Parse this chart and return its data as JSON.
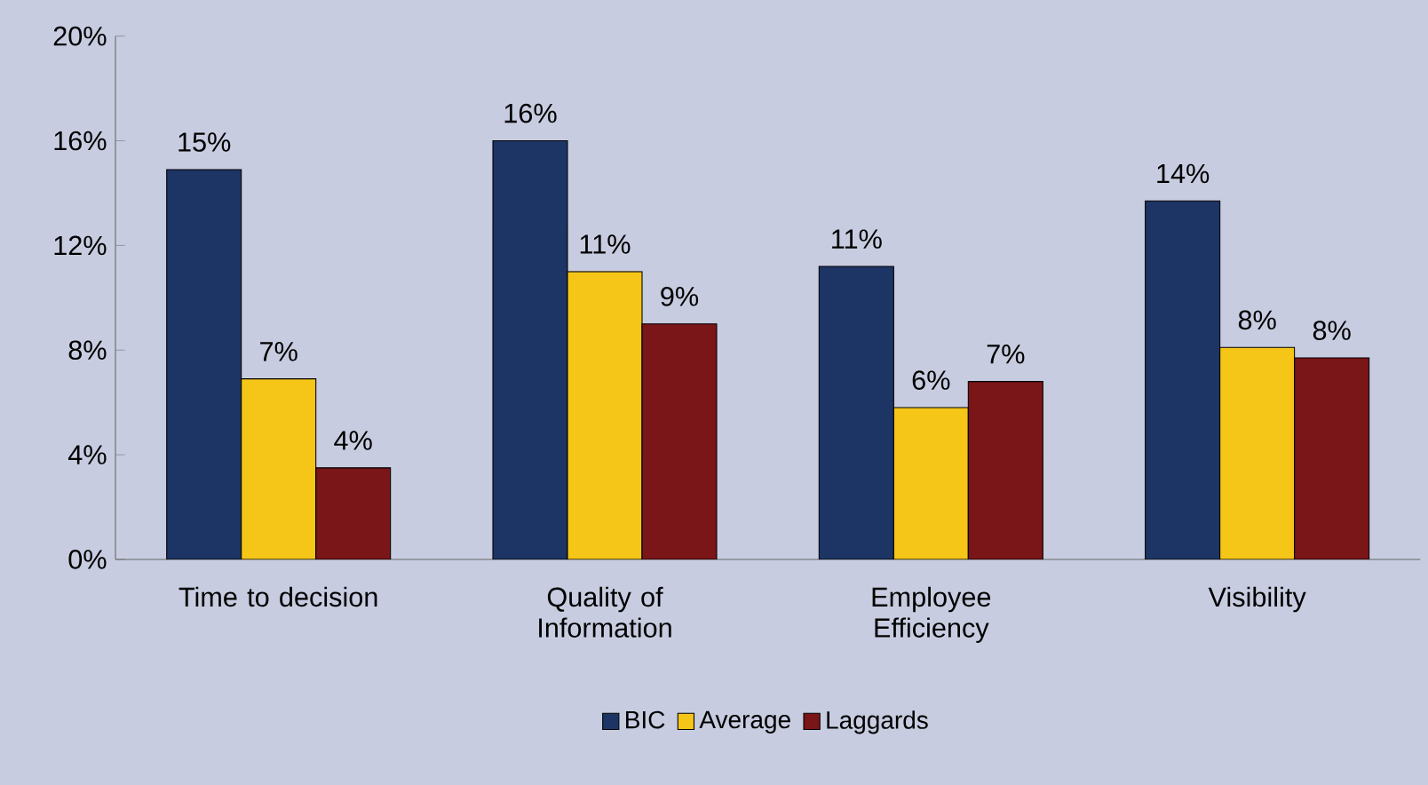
{
  "chart_data": {
    "type": "bar",
    "categories": [
      "Time to decision",
      "Quality of Information",
      "Employee Efficiency",
      "Visibility"
    ],
    "series": [
      {
        "name": "BIC",
        "color": "#1c3564",
        "values": [
          14.9,
          16.0,
          11.2,
          13.7
        ],
        "value_labels": [
          "15%",
          "16%",
          "11%",
          "14%"
        ]
      },
      {
        "name": "Average",
        "color": "#f5c518",
        "values": [
          6.9,
          11.0,
          5.8,
          8.1
        ],
        "value_labels": [
          "7%",
          "11%",
          "6%",
          "8%"
        ]
      },
      {
        "name": "Laggards",
        "color": "#7a1518",
        "values": [
          3.5,
          9.0,
          6.8,
          7.7
        ],
        "value_labels": [
          "4%",
          "9%",
          "7%",
          "8%"
        ]
      }
    ],
    "ylim": [
      0,
      20
    ],
    "yticks": [
      {
        "value": 0,
        "label": "0%"
      },
      {
        "value": 4,
        "label": "4%"
      },
      {
        "value": 8,
        "label": "8%"
      },
      {
        "value": 12,
        "label": "12%"
      },
      {
        "value": 16,
        "label": "16%"
      },
      {
        "value": 20,
        "label": "20%"
      }
    ],
    "grid": false,
    "legend": "bottom"
  }
}
